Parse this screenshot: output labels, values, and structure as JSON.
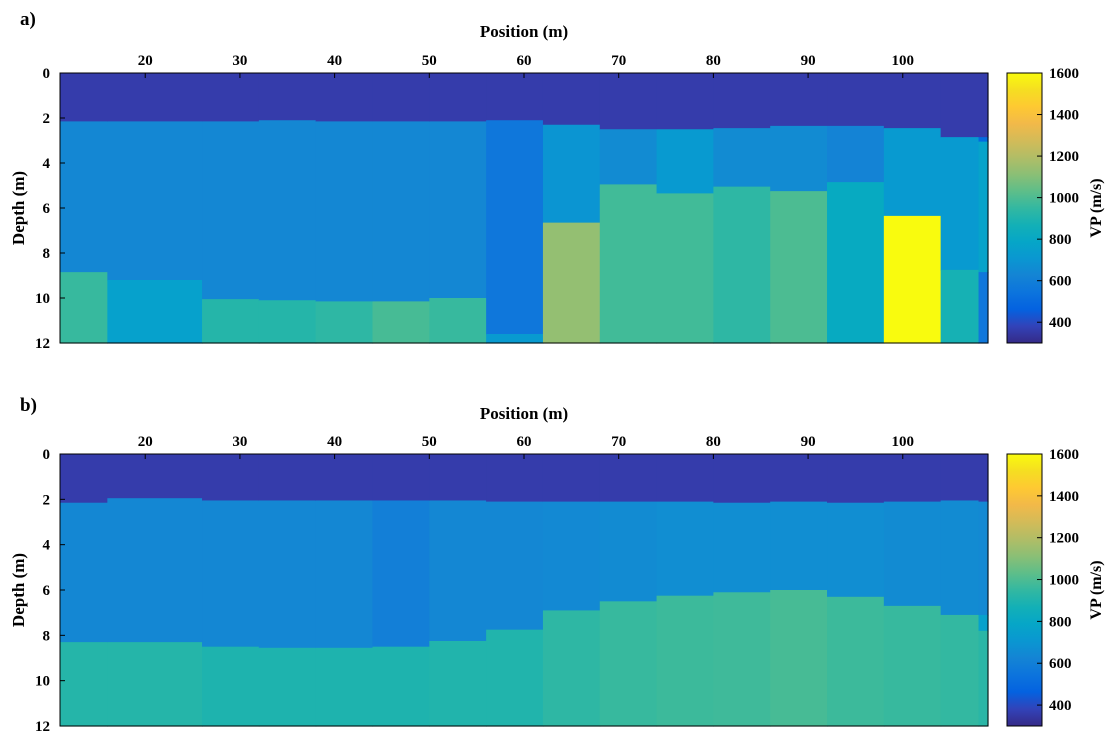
{
  "chart_data": [
    {
      "panel_label": "a)",
      "type": "heatmap",
      "xlabel": "Position (m)",
      "ylabel": "Depth (m)",
      "colorbar_label": "VP (m/s)",
      "xlim": [
        11,
        109
      ],
      "ylim": [
        0,
        12
      ],
      "x_ticks": [
        "20",
        "30",
        "40",
        "50",
        "60",
        "70",
        "80",
        "90",
        "100"
      ],
      "y_ticks": [
        "0",
        "2",
        "4",
        "6",
        "8",
        "10",
        "12"
      ],
      "colorbar_range": [
        300,
        1600
      ],
      "colorbar_ticks": [
        "400",
        "600",
        "800",
        "1000",
        "1200",
        "1400",
        "1600"
      ],
      "columns": [
        {
          "x": [
            11,
            16
          ],
          "layers": [
            {
              "depth": [
                0,
                2.15
              ],
              "vp": 360
            },
            {
              "depth": [
                2.15,
                8.85
              ],
              "vp": 640
            },
            {
              "depth": [
                8.85,
                12
              ],
              "vp": 960
            }
          ]
        },
        {
          "x": [
            16,
            26
          ],
          "layers": [
            {
              "depth": [
                0,
                2.15
              ],
              "vp": 360
            },
            {
              "depth": [
                2.15,
                9.2
              ],
              "vp": 640
            },
            {
              "depth": [
                9.2,
                12
              ],
              "vp": 760
            }
          ]
        },
        {
          "x": [
            26,
            32
          ],
          "layers": [
            {
              "depth": [
                0,
                2.15
              ],
              "vp": 360
            },
            {
              "depth": [
                2.15,
                10.05
              ],
              "vp": 640
            },
            {
              "depth": [
                10.05,
                12
              ],
              "vp": 920
            }
          ]
        },
        {
          "x": [
            32,
            38
          ],
          "layers": [
            {
              "depth": [
                0,
                2.1
              ],
              "vp": 360
            },
            {
              "depth": [
                2.1,
                10.1
              ],
              "vp": 640
            },
            {
              "depth": [
                10.1,
                12
              ],
              "vp": 920
            }
          ]
        },
        {
          "x": [
            38,
            44
          ],
          "layers": [
            {
              "depth": [
                0,
                2.15
              ],
              "vp": 360
            },
            {
              "depth": [
                2.15,
                10.15
              ],
              "vp": 640
            },
            {
              "depth": [
                10.15,
                12
              ],
              "vp": 940
            }
          ]
        },
        {
          "x": [
            44,
            50
          ],
          "layers": [
            {
              "depth": [
                0,
                2.15
              ],
              "vp": 360
            },
            {
              "depth": [
                2.15,
                10.15
              ],
              "vp": 640
            },
            {
              "depth": [
                10.15,
                12
              ],
              "vp": 990
            }
          ]
        },
        {
          "x": [
            50,
            56
          ],
          "layers": [
            {
              "depth": [
                0,
                2.15
              ],
              "vp": 360
            },
            {
              "depth": [
                2.15,
                10.0
              ],
              "vp": 640
            },
            {
              "depth": [
                10.0,
                12
              ],
              "vp": 960
            }
          ]
        },
        {
          "x": [
            56,
            62
          ],
          "layers": [
            {
              "depth": [
                0,
                2.1
              ],
              "vp": 360
            },
            {
              "depth": [
                2.1,
                11.6
              ],
              "vp": 560
            },
            {
              "depth": [
                11.6,
                12
              ],
              "vp": 720
            }
          ]
        },
        {
          "x": [
            62,
            68
          ],
          "layers": [
            {
              "depth": [
                0,
                2.3
              ],
              "vp": 360
            },
            {
              "depth": [
                2.3,
                6.65
              ],
              "vp": 700
            },
            {
              "depth": [
                6.65,
                12
              ],
              "vp": 1130
            }
          ]
        },
        {
          "x": [
            68,
            74
          ],
          "layers": [
            {
              "depth": [
                0,
                2.5
              ],
              "vp": 360
            },
            {
              "depth": [
                2.5,
                4.95
              ],
              "vp": 660
            },
            {
              "depth": [
                4.95,
                12
              ],
              "vp": 980
            }
          ]
        },
        {
          "x": [
            74,
            80
          ],
          "layers": [
            {
              "depth": [
                0,
                2.5
              ],
              "vp": 360
            },
            {
              "depth": [
                2.5,
                5.35
              ],
              "vp": 720
            },
            {
              "depth": [
                5.35,
                12
              ],
              "vp": 980
            }
          ]
        },
        {
          "x": [
            80,
            86
          ],
          "layers": [
            {
              "depth": [
                0,
                2.45
              ],
              "vp": 360
            },
            {
              "depth": [
                2.45,
                5.05
              ],
              "vp": 660
            },
            {
              "depth": [
                5.05,
                12
              ],
              "vp": 940
            }
          ]
        },
        {
          "x": [
            86,
            92
          ],
          "layers": [
            {
              "depth": [
                0,
                2.35
              ],
              "vp": 360
            },
            {
              "depth": [
                2.35,
                5.25
              ],
              "vp": 660
            },
            {
              "depth": [
                5.25,
                12
              ],
              "vp": 1000
            }
          ]
        },
        {
          "x": [
            92,
            98
          ],
          "layers": [
            {
              "depth": [
                0,
                2.35
              ],
              "vp": 360
            },
            {
              "depth": [
                2.35,
                4.85
              ],
              "vp": 620
            },
            {
              "depth": [
                4.85,
                12
              ],
              "vp": 820
            }
          ]
        },
        {
          "x": [
            98,
            104
          ],
          "layers": [
            {
              "depth": [
                0,
                2.45
              ],
              "vp": 360
            },
            {
              "depth": [
                2.45,
                6.35
              ],
              "vp": 720
            },
            {
              "depth": [
                6.35,
                12
              ],
              "vp": 1600
            }
          ]
        },
        {
          "x": [
            104,
            108
          ],
          "layers": [
            {
              "depth": [
                0,
                2.85
              ],
              "vp": 360
            },
            {
              "depth": [
                2.85,
                8.75
              ],
              "vp": 720
            },
            {
              "depth": [
                8.75,
                12
              ],
              "vp": 880
            }
          ]
        },
        {
          "x": [
            108,
            109
          ],
          "layers": [
            {
              "depth": [
                0,
                2.85
              ],
              "vp": 360
            },
            {
              "depth": [
                2.85,
                3.05
              ],
              "vp": 500
            },
            {
              "depth": [
                3.05,
                8.85
              ],
              "vp": 770
            },
            {
              "depth": [
                8.85,
                12
              ],
              "vp": 560
            }
          ]
        }
      ]
    },
    {
      "panel_label": "b)",
      "type": "heatmap",
      "xlabel": "Position (m)",
      "ylabel": "Depth (m)",
      "colorbar_label": "VP (m/s)",
      "xlim": [
        11,
        109
      ],
      "ylim": [
        0,
        12
      ],
      "x_ticks": [
        "20",
        "30",
        "40",
        "50",
        "60",
        "70",
        "80",
        "90",
        "100"
      ],
      "y_ticks": [
        "0",
        "2",
        "4",
        "6",
        "8",
        "10",
        "12"
      ],
      "colorbar_range": [
        300,
        1600
      ],
      "colorbar_ticks": [
        "400",
        "600",
        "800",
        "1000",
        "1200",
        "1400",
        "1600"
      ],
      "columns": [
        {
          "x": [
            11,
            16
          ],
          "layers": [
            {
              "depth": [
                0,
                2.15
              ],
              "vp": 360
            },
            {
              "depth": [
                2.15,
                8.3
              ],
              "vp": 640
            },
            {
              "depth": [
                8.3,
                12
              ],
              "vp": 920
            }
          ]
        },
        {
          "x": [
            16,
            26
          ],
          "layers": [
            {
              "depth": [
                0,
                1.95
              ],
              "vp": 360
            },
            {
              "depth": [
                1.95,
                8.3
              ],
              "vp": 640
            },
            {
              "depth": [
                8.3,
                12
              ],
              "vp": 920
            }
          ]
        },
        {
          "x": [
            26,
            32
          ],
          "layers": [
            {
              "depth": [
                0,
                2.05
              ],
              "vp": 360
            },
            {
              "depth": [
                2.05,
                8.5
              ],
              "vp": 640
            },
            {
              "depth": [
                8.5,
                12
              ],
              "vp": 900
            }
          ]
        },
        {
          "x": [
            32,
            38
          ],
          "layers": [
            {
              "depth": [
                0,
                2.05
              ],
              "vp": 360
            },
            {
              "depth": [
                2.05,
                8.55
              ],
              "vp": 640
            },
            {
              "depth": [
                8.55,
                12
              ],
              "vp": 900
            }
          ]
        },
        {
          "x": [
            38,
            44
          ],
          "layers": [
            {
              "depth": [
                0,
                2.05
              ],
              "vp": 360
            },
            {
              "depth": [
                2.05,
                8.55
              ],
              "vp": 640
            },
            {
              "depth": [
                8.55,
                12
              ],
              "vp": 900
            }
          ]
        },
        {
          "x": [
            44,
            50
          ],
          "layers": [
            {
              "depth": [
                0,
                2.05
              ],
              "vp": 360
            },
            {
              "depth": [
                2.05,
                8.5
              ],
              "vp": 600
            },
            {
              "depth": [
                8.5,
                12
              ],
              "vp": 900
            }
          ]
        },
        {
          "x": [
            50,
            56
          ],
          "layers": [
            {
              "depth": [
                0,
                2.05
              ],
              "vp": 360
            },
            {
              "depth": [
                2.05,
                8.25
              ],
              "vp": 640
            },
            {
              "depth": [
                8.25,
                12
              ],
              "vp": 910
            }
          ]
        },
        {
          "x": [
            56,
            62
          ],
          "layers": [
            {
              "depth": [
                0,
                2.1
              ],
              "vp": 360
            },
            {
              "depth": [
                2.1,
                7.75
              ],
              "vp": 640
            },
            {
              "depth": [
                7.75,
                12
              ],
              "vp": 910
            }
          ]
        },
        {
          "x": [
            62,
            68
          ],
          "layers": [
            {
              "depth": [
                0,
                2.1
              ],
              "vp": 360
            },
            {
              "depth": [
                2.1,
                6.9
              ],
              "vp": 650
            },
            {
              "depth": [
                6.9,
                12
              ],
              "vp": 940
            }
          ]
        },
        {
          "x": [
            68,
            74
          ],
          "layers": [
            {
              "depth": [
                0,
                2.1
              ],
              "vp": 360
            },
            {
              "depth": [
                2.1,
                6.5
              ],
              "vp": 660
            },
            {
              "depth": [
                6.5,
                12
              ],
              "vp": 960
            }
          ]
        },
        {
          "x": [
            74,
            80
          ],
          "layers": [
            {
              "depth": [
                0,
                2.1
              ],
              "vp": 360
            },
            {
              "depth": [
                2.1,
                6.25
              ],
              "vp": 670
            },
            {
              "depth": [
                6.25,
                12
              ],
              "vp": 970
            }
          ]
        },
        {
          "x": [
            80,
            86
          ],
          "layers": [
            {
              "depth": [
                0,
                2.15
              ],
              "vp": 360
            },
            {
              "depth": [
                2.15,
                6.1
              ],
              "vp": 670
            },
            {
              "depth": [
                6.1,
                12
              ],
              "vp": 975
            }
          ]
        },
        {
          "x": [
            86,
            92
          ],
          "layers": [
            {
              "depth": [
                0,
                2.1
              ],
              "vp": 360
            },
            {
              "depth": [
                2.1,
                6.0
              ],
              "vp": 670
            },
            {
              "depth": [
                6.0,
                12
              ],
              "vp": 990
            }
          ]
        },
        {
          "x": [
            92,
            98
          ],
          "layers": [
            {
              "depth": [
                0,
                2.15
              ],
              "vp": 360
            },
            {
              "depth": [
                2.15,
                6.3
              ],
              "vp": 670
            },
            {
              "depth": [
                6.3,
                12
              ],
              "vp": 970
            }
          ]
        },
        {
          "x": [
            98,
            104
          ],
          "layers": [
            {
              "depth": [
                0,
                2.1
              ],
              "vp": 360
            },
            {
              "depth": [
                2.1,
                6.7
              ],
              "vp": 660
            },
            {
              "depth": [
                6.7,
                12
              ],
              "vp": 960
            }
          ]
        },
        {
          "x": [
            104,
            108
          ],
          "layers": [
            {
              "depth": [
                0,
                2.05
              ],
              "vp": 360
            },
            {
              "depth": [
                2.05,
                7.1
              ],
              "vp": 660
            },
            {
              "depth": [
                7.1,
                12
              ],
              "vp": 950
            }
          ]
        },
        {
          "x": [
            108,
            109
          ],
          "layers": [
            {
              "depth": [
                0,
                2.1
              ],
              "vp": 360
            },
            {
              "depth": [
                2.1,
                7.1
              ],
              "vp": 650
            },
            {
              "depth": [
                7.1,
                7.8
              ],
              "vp": 760
            },
            {
              "depth": [
                7.8,
                12
              ],
              "vp": 930
            }
          ]
        }
      ]
    }
  ]
}
